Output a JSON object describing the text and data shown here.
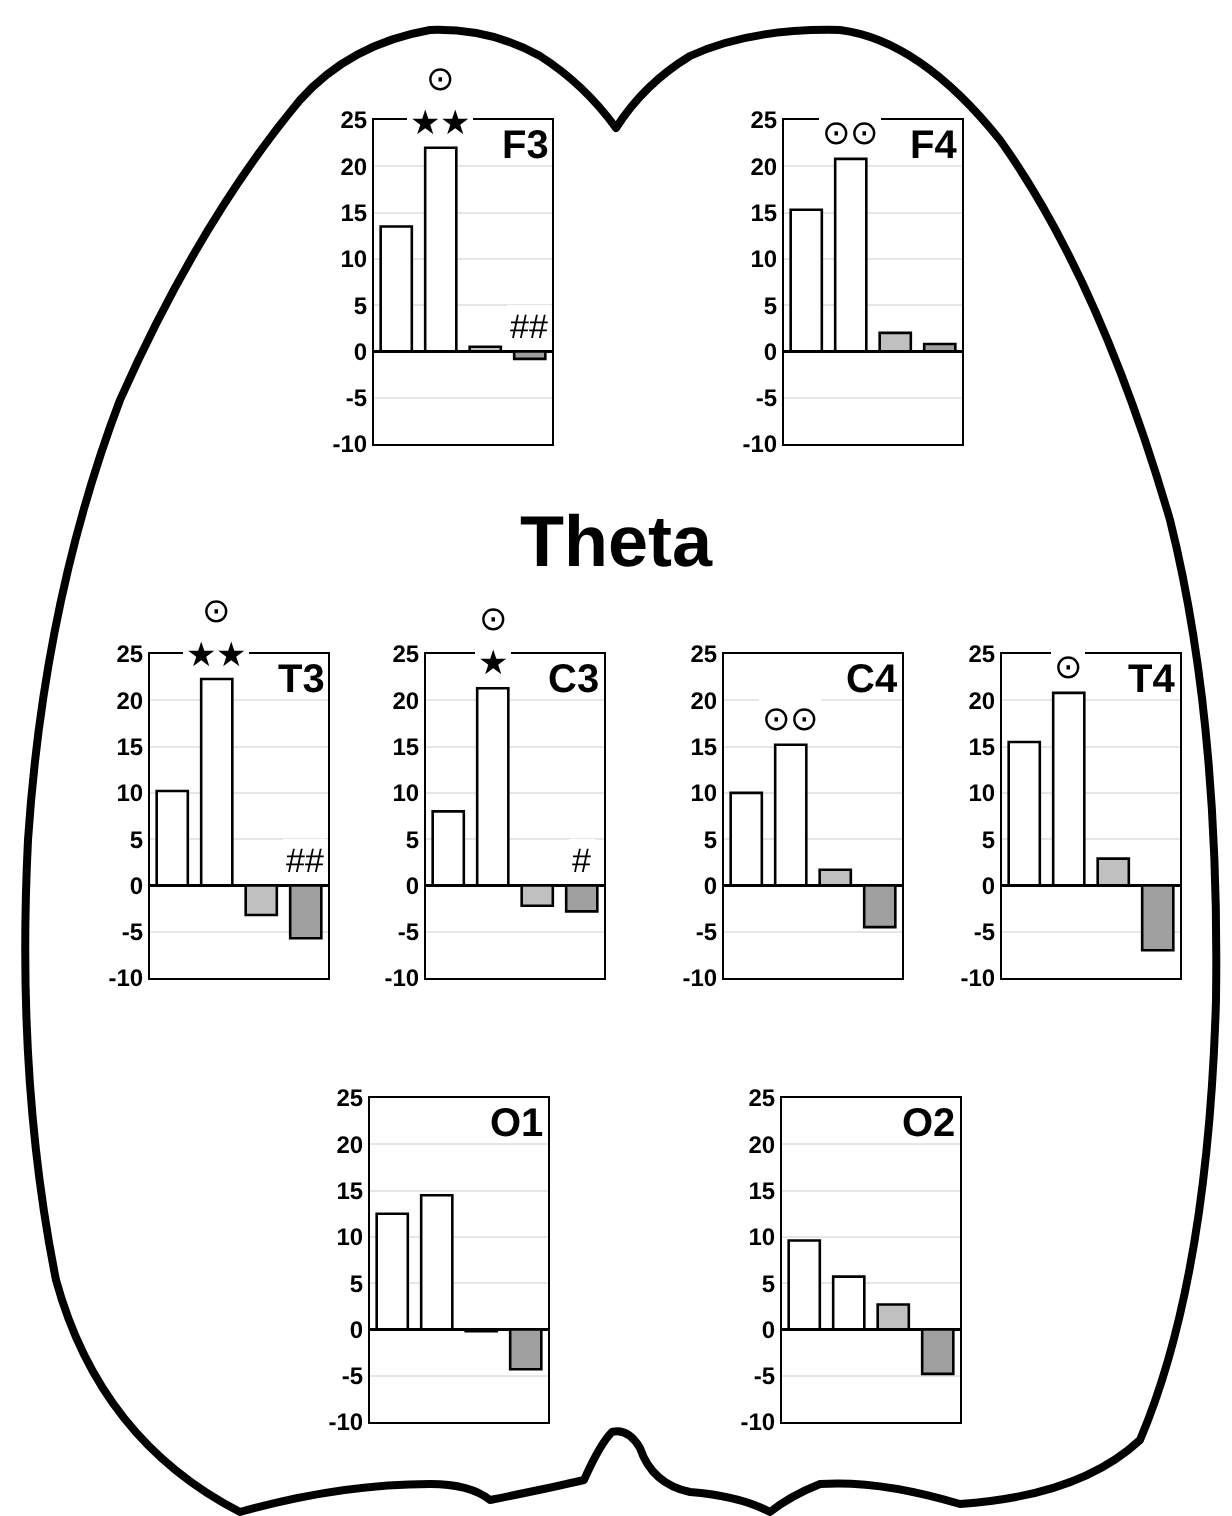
{
  "chart_data": [
    {
      "type": "bar",
      "title": "F3",
      "categories": [
        null,
        null,
        null,
        null
      ],
      "values": [
        13.5,
        22,
        0.5,
        -0.8
      ],
      "colors": [
        "#ffffff",
        "#ffffff",
        "#c0c0c0",
        "#a0a0a0"
      ],
      "value_labels": [
        null,
        "⊙\n★★",
        null,
        "##"
      ],
      "ylim": [
        -10,
        25
      ],
      "yticks": [
        -10,
        -5,
        0,
        5,
        10,
        15,
        20,
        25
      ],
      "grid": "y"
    },
    {
      "type": "bar",
      "title": "F4",
      "categories": [
        null,
        null,
        null,
        null
      ],
      "values": [
        15.3,
        20.8,
        2,
        0.8
      ],
      "colors": [
        "#ffffff",
        "#ffffff",
        "#c0c0c0",
        "#a0a0a0"
      ],
      "value_labels": [
        null,
        "⊙⊙",
        null,
        null
      ],
      "ylim": [
        -10,
        25
      ],
      "yticks": [
        -10,
        -5,
        0,
        5,
        10,
        15,
        20,
        25
      ],
      "grid": "y"
    },
    {
      "type": "other",
      "title": "Theta"
    },
    {
      "type": "bar",
      "title": "T3",
      "categories": [
        null,
        null,
        null,
        null
      ],
      "values": [
        10.2,
        22.3,
        -3.2,
        -5.7
      ],
      "colors": [
        "#ffffff",
        "#ffffff",
        "#c0c0c0",
        "#a0a0a0"
      ],
      "value_labels": [
        null,
        "⊙\n★★",
        null,
        "##"
      ],
      "ylim": [
        -10,
        25
      ],
      "yticks": [
        -10,
        -5,
        0,
        5,
        10,
        15,
        20,
        25
      ],
      "grid": "y"
    },
    {
      "type": "bar",
      "title": "C3",
      "categories": [
        null,
        null,
        null,
        null
      ],
      "values": [
        8,
        21.3,
        -2.2,
        -2.8
      ],
      "colors": [
        "#ffffff",
        "#ffffff",
        "#c0c0c0",
        "#a0a0a0"
      ],
      "value_labels": [
        null,
        "⊙\n★",
        null,
        "#"
      ],
      "ylim": [
        -10,
        25
      ],
      "yticks": [
        -10,
        -5,
        0,
        5,
        10,
        15,
        20,
        25
      ],
      "grid": "y"
    },
    {
      "type": "bar",
      "title": "C4",
      "categories": [
        null,
        null,
        null,
        null
      ],
      "values": [
        10,
        15.2,
        1.7,
        -4.5
      ],
      "colors": [
        "#ffffff",
        "#ffffff",
        "#c0c0c0",
        "#a0a0a0"
      ],
      "value_labels": [
        null,
        "⊙⊙",
        null,
        null
      ],
      "ylim": [
        -10,
        25
      ],
      "yticks": [
        -10,
        -5,
        0,
        5,
        10,
        15,
        20,
        25
      ],
      "grid": "y"
    },
    {
      "type": "bar",
      "title": "T4",
      "categories": [
        null,
        null,
        null,
        null
      ],
      "values": [
        15.5,
        20.8,
        2.9,
        -7
      ],
      "colors": [
        "#ffffff",
        "#ffffff",
        "#c0c0c0",
        "#a0a0a0"
      ],
      "value_labels": [
        null,
        "⊙",
        null,
        null
      ],
      "ylim": [
        -10,
        25
      ],
      "yticks": [
        -10,
        -5,
        0,
        5,
        10,
        15,
        20,
        25
      ],
      "grid": "y"
    },
    {
      "type": "bar",
      "title": "O1",
      "categories": [
        null,
        null,
        null,
        null
      ],
      "values": [
        12.5,
        14.5,
        -0.2,
        -4.3
      ],
      "colors": [
        "#ffffff",
        "#ffffff",
        "#c0c0c0",
        "#a0a0a0"
      ],
      "ylim": [
        -10,
        25
      ],
      "yticks": [
        -10,
        -5,
        0,
        5,
        10,
        15,
        20,
        25
      ],
      "grid": "y"
    },
    {
      "type": "bar",
      "title": "O2",
      "categories": [
        null,
        null,
        null,
        null
      ],
      "values": [
        9.6,
        5.7,
        2.7,
        -4.8
      ],
      "colors": [
        "#ffffff",
        "#ffffff",
        "#c0c0c0",
        "#a0a0a0"
      ],
      "ylim": [
        -10,
        25
      ],
      "yticks": [
        -10,
        -5,
        0,
        5,
        10,
        15,
        20,
        25
      ],
      "grid": "y"
    }
  ]
}
